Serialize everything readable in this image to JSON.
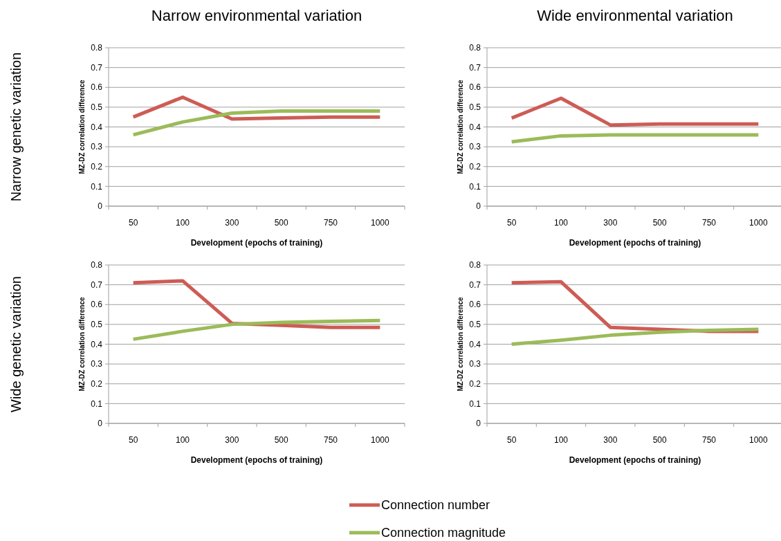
{
  "chart_data": [
    {
      "type": "line",
      "title": "Narrow environmental variation",
      "xlabel": "Development (epochs of training)",
      "ylabel": "MZ-DZ correlation difference",
      "annotations": [
        "Narrow genetic variation"
      ],
      "categories": [
        "50",
        "100",
        "300",
        "500",
        "750",
        "1000"
      ],
      "ylim": [
        0,
        0.8
      ],
      "yticks": [
        0,
        0.1,
        0.2,
        0.3,
        0.4,
        0.5,
        0.6,
        0.7,
        0.8
      ],
      "grid": "y",
      "series": [
        {
          "color": "#cd5c55",
          "values": [
            0.45,
            0.55,
            0.44,
            0.445,
            0.45,
            0.45
          ]
        },
        {
          "color": "#9bbb59",
          "values": [
            0.36,
            0.425,
            0.47,
            0.48,
            0.48,
            0.48
          ]
        }
      ]
    },
    {
      "type": "line",
      "title": "Wide environmental variation",
      "xlabel": "Development (epochs of training)",
      "ylabel": "MZ-DZ correlation difference",
      "categories": [
        "50",
        "100",
        "300",
        "500",
        "750",
        "1000"
      ],
      "ylim": [
        0,
        0.8
      ],
      "yticks": [
        0,
        0.1,
        0.2,
        0.3,
        0.4,
        0.5,
        0.6,
        0.7,
        0.8
      ],
      "grid": "y",
      "series": [
        {
          "color": "#cd5c55",
          "values": [
            0.445,
            0.545,
            0.41,
            0.415,
            0.415,
            0.415
          ]
        },
        {
          "color": "#9bbb59",
          "values": [
            0.325,
            0.355,
            0.36,
            0.36,
            0.36,
            0.36
          ]
        }
      ]
    },
    {
      "type": "line",
      "xlabel": "Development (epochs of training)",
      "ylabel": "MZ-DZ correlation difference",
      "annotations": [
        "Wide genetic variation"
      ],
      "categories": [
        "50",
        "100",
        "300",
        "500",
        "750",
        "1000"
      ],
      "ylim": [
        0,
        0.8
      ],
      "yticks": [
        0,
        0.1,
        0.2,
        0.3,
        0.4,
        0.5,
        0.6,
        0.7,
        0.8
      ],
      "grid": "y",
      "series": [
        {
          "color": "#cd5c55",
          "values": [
            0.71,
            0.72,
            0.505,
            0.495,
            0.485,
            0.485
          ]
        },
        {
          "color": "#9bbb59",
          "values": [
            0.425,
            0.465,
            0.5,
            0.51,
            0.515,
            0.52
          ]
        }
      ]
    },
    {
      "type": "line",
      "xlabel": "Development (epochs of training)",
      "ylabel": "MZ-DZ correlation difference",
      "categories": [
        "50",
        "100",
        "300",
        "500",
        "750",
        "1000"
      ],
      "ylim": [
        0,
        0.8
      ],
      "yticks": [
        0,
        0.1,
        0.2,
        0.3,
        0.4,
        0.5,
        0.6,
        0.7,
        0.8
      ],
      "grid": "y",
      "legend": "bottom",
      "series": [
        {
          "name": "Connection number",
          "color": "#cd5c55",
          "values": [
            0.71,
            0.715,
            0.485,
            0.475,
            0.465,
            0.465
          ]
        },
        {
          "name": "Connection magnitude",
          "color": "#9bbb59",
          "values": [
            0.4,
            0.42,
            0.445,
            0.46,
            0.47,
            0.475
          ]
        }
      ]
    }
  ]
}
